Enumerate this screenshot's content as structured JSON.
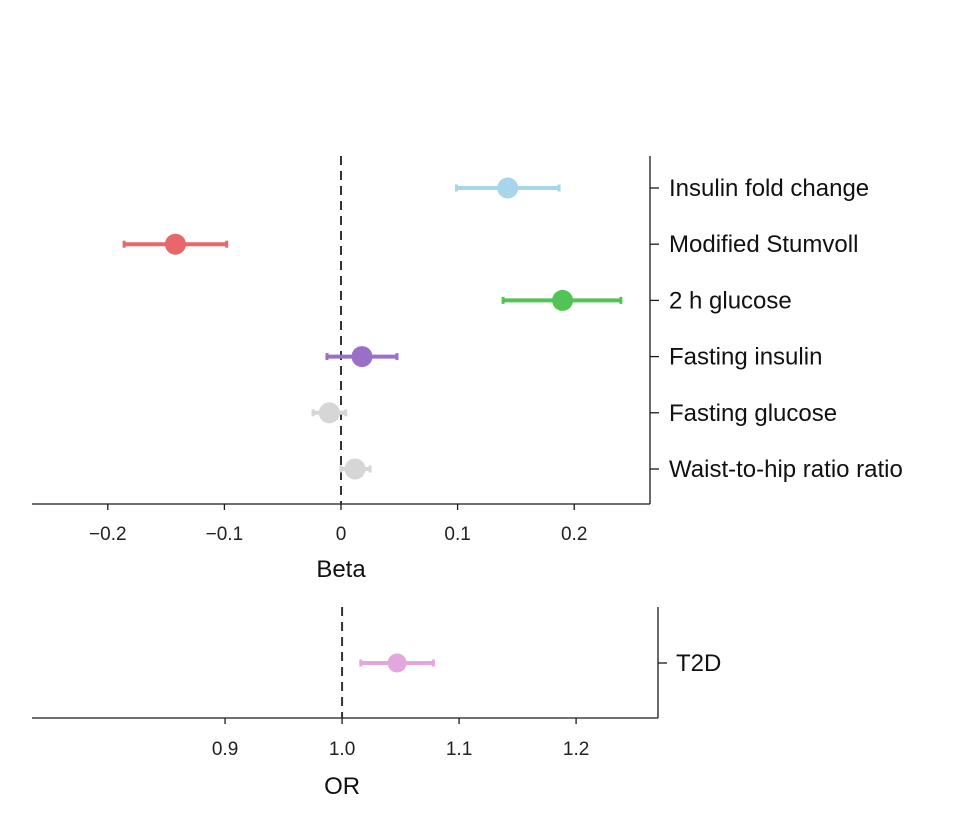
{
  "chart_data": [
    {
      "type": "forest",
      "xlabel": "Beta",
      "xlim": [
        -0.265,
        0.265
      ],
      "xticks": [
        -0.2,
        -0.1,
        0,
        0.1,
        0.2
      ],
      "xtick_labels": [
        "−0.2",
        "−0.1",
        "0",
        "0.1",
        "0.2"
      ],
      "reference_line": 0,
      "label_side": "right",
      "rows": [
        {
          "label": "Insulin fold change",
          "estimate": 0.143,
          "lower": 0.099,
          "upper": 0.187,
          "color": "#a7d6ea"
        },
        {
          "label": "Modified Stumvoll",
          "estimate": -0.142,
          "lower": -0.186,
          "upper": -0.098,
          "color": "#e8676a"
        },
        {
          "label": "2 h glucose",
          "estimate": 0.19,
          "lower": 0.139,
          "upper": 0.24,
          "color": "#52c455"
        },
        {
          "label": "Fasting insulin",
          "estimate": 0.018,
          "lower": -0.012,
          "upper": 0.048,
          "color": "#9a6fc8"
        },
        {
          "label": "Fasting glucose",
          "estimate": -0.01,
          "lower": -0.024,
          "upper": 0.004,
          "color": "#d6d6d6"
        },
        {
          "label": "Waist-to-hip ratio ratio",
          "estimate": 0.012,
          "lower": 0.0,
          "upper": 0.025,
          "color": "#d6d6d6"
        }
      ]
    },
    {
      "type": "forest",
      "xlabel": "OR",
      "xlim": [
        0.735,
        1.27
      ],
      "xticks": [
        0.9,
        1.0,
        1.1,
        1.2
      ],
      "xtick_labels": [
        "0.9",
        "1.0",
        "1.1",
        "1.2"
      ],
      "reference_line": 1.0,
      "label_side": "right",
      "rows": [
        {
          "label": "T2D",
          "estimate": 1.047,
          "lower": 1.016,
          "upper": 1.078,
          "color": "#e3a6de"
        }
      ]
    }
  ]
}
